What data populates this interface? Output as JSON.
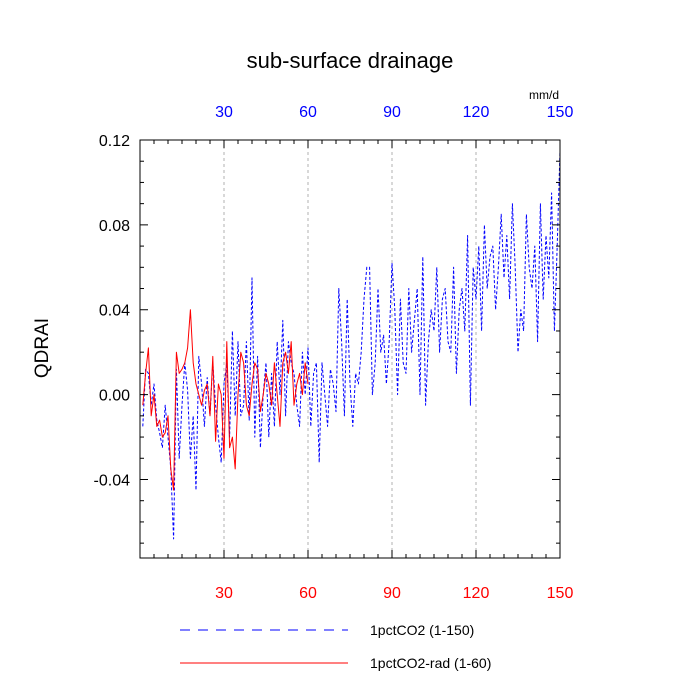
{
  "chart_data": {
    "type": "line",
    "title": "sub-surface drainage",
    "ylabel": "QDRAI",
    "top_axis_unit": "mm/d",
    "xlim": [
      0,
      150
    ],
    "ylim": [
      -0.077,
      0.12
    ],
    "y_ticks": [
      -0.04,
      0.0,
      0.04,
      0.08,
      0.12
    ],
    "y_tick_labels": [
      "-0.04",
      "0.00",
      "0.04",
      "0.08",
      "0.12"
    ],
    "x_ticks": [
      30,
      60,
      90,
      120,
      150
    ],
    "x_tick_labels_bottom": [
      "30",
      "60",
      "90",
      "120",
      "150"
    ],
    "x_tick_labels_top": [
      "30",
      "60",
      "90",
      "120",
      "150"
    ],
    "bottom_axis_color": "#ff0000",
    "top_axis_color": "#0000ff",
    "grid": "vertical dashed at x ticks",
    "legend_position": "bottom",
    "series": [
      {
        "name": "1pctCO2 (1-150)",
        "color": "#0000ff",
        "style": "dashed",
        "x": [
          1,
          2,
          3,
          4,
          5,
          6,
          7,
          8,
          9,
          10,
          11,
          12,
          13,
          14,
          15,
          16,
          17,
          18,
          19,
          20,
          21,
          22,
          23,
          24,
          25,
          26,
          27,
          28,
          29,
          30,
          31,
          32,
          33,
          34,
          35,
          36,
          37,
          38,
          39,
          40,
          41,
          42,
          43,
          44,
          45,
          46,
          47,
          48,
          49,
          50,
          51,
          52,
          53,
          54,
          55,
          56,
          57,
          58,
          59,
          60,
          61,
          62,
          63,
          64,
          65,
          66,
          67,
          68,
          69,
          70,
          71,
          72,
          73,
          74,
          75,
          76,
          77,
          78,
          79,
          80,
          81,
          82,
          83,
          84,
          85,
          86,
          87,
          88,
          89,
          90,
          91,
          92,
          93,
          94,
          95,
          96,
          97,
          98,
          99,
          100,
          101,
          102,
          103,
          104,
          105,
          106,
          107,
          108,
          109,
          110,
          111,
          112,
          113,
          114,
          115,
          116,
          117,
          118,
          119,
          120,
          121,
          122,
          123,
          124,
          125,
          126,
          127,
          128,
          129,
          130,
          131,
          132,
          133,
          134,
          135,
          136,
          137,
          138,
          139,
          140,
          141,
          142,
          143,
          144,
          145,
          146,
          147,
          148,
          149,
          150
        ],
        "y": [
          -0.015,
          0.012,
          0.01,
          -0.005,
          0.005,
          -0.012,
          -0.018,
          -0.025,
          -0.005,
          -0.02,
          -0.035,
          -0.068,
          0.012,
          -0.03,
          -0.005,
          0.015,
          0.002,
          -0.03,
          -0.01,
          -0.045,
          0.018,
          0.005,
          -0.015,
          0.008,
          -0.01,
          0.015,
          -0.005,
          -0.02,
          -0.032,
          0.005,
          0.015,
          -0.02,
          0.03,
          -0.01,
          0.025,
          -0.01,
          -0.005,
          0.025,
          -0.012,
          0.055,
          -0.02,
          0.018,
          -0.025,
          0.0,
          0.015,
          -0.02,
          0.01,
          -0.015,
          0.025,
          0.0,
          0.035,
          -0.01,
          0.025,
          0.015,
          0.01,
          -0.005,
          -0.015,
          0.02,
          0.0,
          0.022,
          -0.015,
          0.01,
          0.015,
          -0.032,
          0.015,
          0.0,
          -0.015,
          0.012,
          0.005,
          -0.008,
          0.05,
          0.025,
          -0.01,
          0.045,
          0.005,
          -0.015,
          0.01,
          0.005,
          0.02,
          0.045,
          0.06,
          0.06,
          0.0,
          0.015,
          0.05,
          0.02,
          0.028,
          0.005,
          0.025,
          0.062,
          0.04,
          0.0,
          0.045,
          0.015,
          0.01,
          0.05,
          0.02,
          0.035,
          0.05,
          0.0,
          0.065,
          -0.005,
          0.025,
          0.04,
          0.03,
          0.06,
          0.02,
          0.045,
          0.05,
          0.025,
          0.02,
          0.06,
          0.01,
          0.04,
          0.05,
          0.03,
          0.075,
          -0.005,
          0.06,
          0.045,
          0.07,
          0.03,
          0.08,
          0.05,
          0.065,
          0.07,
          0.04,
          0.06,
          0.085,
          0.055,
          0.075,
          0.045,
          0.09,
          0.06,
          0.02,
          0.04,
          0.03,
          0.085,
          0.06,
          0.05,
          0.07,
          0.025,
          0.09,
          0.045,
          0.075,
          0.055,
          0.095,
          0.03,
          0.07,
          0.115
        ]
      },
      {
        "name": "1pctCO2-rad (1-60)",
        "color": "#ff0000",
        "style": "solid",
        "x": [
          1,
          2,
          3,
          4,
          5,
          6,
          7,
          8,
          9,
          10,
          11,
          12,
          13,
          14,
          15,
          16,
          17,
          18,
          19,
          20,
          21,
          22,
          23,
          24,
          25,
          26,
          27,
          28,
          29,
          30,
          31,
          32,
          33,
          34,
          35,
          36,
          37,
          38,
          39,
          40,
          41,
          42,
          43,
          44,
          45,
          46,
          47,
          48,
          49,
          50,
          51,
          52,
          53,
          54,
          55,
          56,
          57,
          58,
          59,
          60
        ],
        "y": [
          -0.005,
          0.01,
          0.022,
          -0.01,
          0.0,
          -0.015,
          -0.012,
          -0.02,
          -0.018,
          -0.01,
          -0.035,
          -0.045,
          0.02,
          0.01,
          0.012,
          0.015,
          0.022,
          0.04,
          0.015,
          0.005,
          0.0,
          -0.005,
          0.002,
          0.005,
          -0.01,
          0.018,
          -0.022,
          0.005,
          0.0,
          -0.03,
          0.025,
          -0.025,
          -0.02,
          -0.035,
          0.0,
          0.02,
          0.015,
          -0.005,
          -0.01,
          0.005,
          0.015,
          0.012,
          -0.008,
          0.0,
          0.01,
          0.005,
          -0.005,
          0.015,
          0.0,
          -0.015,
          0.015,
          0.02,
          0.01,
          0.025,
          -0.005,
          0.005,
          0.01,
          0.0,
          0.015,
          0.005
        ]
      }
    ]
  }
}
